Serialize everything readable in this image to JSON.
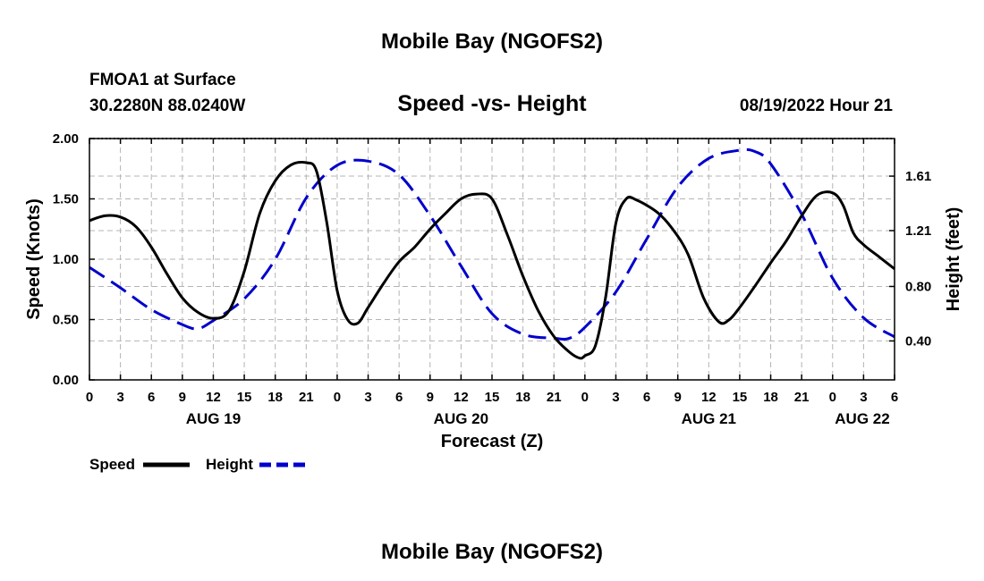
{
  "chart_data": {
    "type": "line",
    "title": "Mobile Bay (NGOFS2)",
    "footer_title": "Mobile Bay (NGOFS2)",
    "station": "FMOA1 at Surface",
    "coordinates": "30.2280N  88.0240W",
    "subtitle": "Speed -vs- Height",
    "timestamp": "08/19/2022 Hour 21",
    "xlabel": "Forecast (Z)",
    "ylabel_left": "Speed (Knots)",
    "ylabel_right": "Height (feet)",
    "xlim": [
      0,
      78
    ],
    "ylim_left": [
      0,
      2
    ],
    "ylim_right": [
      0.114,
      1.886
    ],
    "grid": true,
    "x_tick_values": [
      0,
      3,
      6,
      9,
      12,
      15,
      18,
      21,
      24,
      27,
      30,
      33,
      36,
      39,
      42,
      45,
      48,
      51,
      54,
      57,
      60,
      63,
      66,
      69,
      72,
      75,
      78
    ],
    "x_tick_labels": [
      "0",
      "3",
      "6",
      "9",
      "12",
      "15",
      "18",
      "21",
      "0",
      "3",
      "6",
      "9",
      "12",
      "15",
      "18",
      "21",
      "0",
      "3",
      "6",
      "9",
      "12",
      "15",
      "18",
      "21",
      "0",
      "3",
      "6"
    ],
    "y_left_ticks": [
      {
        "value": 0,
        "label": "0.00"
      },
      {
        "value": 0.5,
        "label": "0.50"
      },
      {
        "value": 1.0,
        "label": "1.00"
      },
      {
        "value": 1.5,
        "label": "1.50"
      },
      {
        "value": 2.0,
        "label": "2.00"
      }
    ],
    "y_right_ticks": [
      {
        "value": 0.4,
        "label": "0.40"
      },
      {
        "value": 0.8,
        "label": "0.80"
      },
      {
        "value": 1.21,
        "label": "1.21"
      },
      {
        "value": 1.61,
        "label": "1.61"
      }
    ],
    "date_labels": [
      {
        "x": 12,
        "label": "AUG 19"
      },
      {
        "x": 36,
        "label": "AUG 20"
      },
      {
        "x": 60,
        "label": "AUG 21"
      },
      {
        "x": 78,
        "label": "AUG 22"
      }
    ],
    "series": [
      {
        "name": "Speed",
        "axis": "left",
        "color": "#000000",
        "style": "solid",
        "x": [
          0,
          1.5,
          3,
          4.5,
          6,
          7.5,
          9,
          10.5,
          12,
          13.5,
          15,
          16.5,
          18,
          19.5,
          21,
          22,
          23,
          24,
          25,
          26,
          27,
          28.5,
          30,
          31.5,
          33,
          34.5,
          36,
          37.5,
          39,
          40.5,
          42,
          43.5,
          45,
          46.5,
          47.5,
          48,
          49,
          50,
          51,
          52,
          53,
          55,
          56.5,
          58,
          59.5,
          61,
          62,
          63,
          64.5,
          66,
          67.5,
          69,
          70.5,
          72,
          73,
          74,
          75,
          76.5,
          78
        ],
        "values": [
          1.32,
          1.36,
          1.35,
          1.27,
          1.1,
          0.88,
          0.68,
          0.56,
          0.51,
          0.57,
          0.9,
          1.38,
          1.65,
          1.78,
          1.8,
          1.73,
          1.3,
          0.74,
          0.5,
          0.47,
          0.6,
          0.8,
          0.98,
          1.1,
          1.25,
          1.38,
          1.5,
          1.54,
          1.5,
          1.2,
          0.86,
          0.57,
          0.36,
          0.23,
          0.18,
          0.2,
          0.28,
          0.68,
          1.3,
          1.5,
          1.49,
          1.39,
          1.25,
          1.04,
          0.68,
          0.48,
          0.5,
          0.6,
          0.78,
          0.97,
          1.15,
          1.36,
          1.53,
          1.55,
          1.45,
          1.22,
          1.12,
          1.02,
          0.92
        ]
      },
      {
        "name": "Height",
        "axis": "right",
        "color": "#0000cc",
        "style": "dashed",
        "x": [
          0,
          3,
          6,
          9,
          10.5,
          12,
          15,
          18,
          21,
          24,
          27,
          30,
          33,
          36,
          39,
          42,
          45,
          46.5,
          48,
          51,
          54,
          57,
          60,
          63,
          64.5,
          66,
          69,
          72,
          75,
          78
        ],
        "values": [
          0.94,
          0.79,
          0.63,
          0.52,
          0.49,
          0.55,
          0.71,
          1.0,
          1.45,
          1.69,
          1.72,
          1.62,
          1.32,
          0.95,
          0.6,
          0.45,
          0.42,
          0.42,
          0.5,
          0.76,
          1.15,
          1.53,
          1.74,
          1.8,
          1.79,
          1.7,
          1.33,
          0.86,
          0.57,
          0.43
        ]
      }
    ]
  },
  "legend": {
    "speed_label": "Speed",
    "height_label": "Height"
  }
}
